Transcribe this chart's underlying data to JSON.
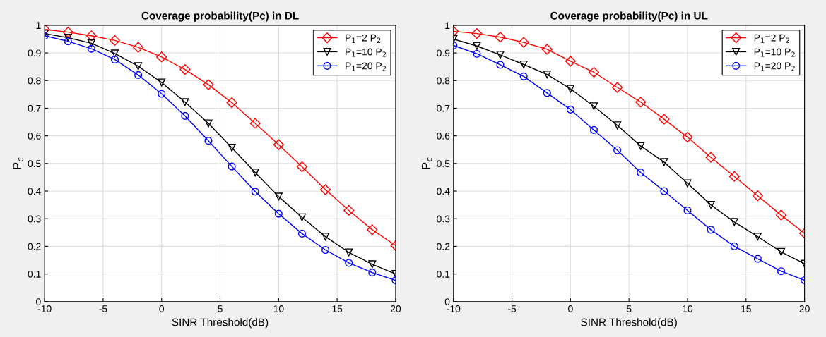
{
  "chart_data": [
    {
      "type": "line",
      "title": "Coverage probability(Pc) in DL",
      "xlabel": "SINR Threshold(dB)",
      "ylabel": "P$_{c}$",
      "x": [
        -10,
        -8,
        -6,
        -4,
        -2,
        0,
        2,
        4,
        6,
        8,
        10,
        12,
        14,
        16,
        18,
        20
      ],
      "xlim": [
        -10,
        20
      ],
      "xticks": [
        -10,
        -5,
        0,
        5,
        10,
        15,
        20
      ],
      "ylim": [
        0,
        1
      ],
      "yticks": [
        0,
        0.1,
        0.2,
        0.3,
        0.4,
        0.5,
        0.6,
        0.7,
        0.8,
        0.9,
        1
      ],
      "grid": true,
      "legend": "top right",
      "line_style": "solid",
      "series": [
        {
          "name": "P$_{1}$=2 P$_{2}$",
          "color": "#ff0000",
          "marker": "diamond",
          "values": [
            0.985,
            0.975,
            0.962,
            0.945,
            0.92,
            0.885,
            0.84,
            0.785,
            0.72,
            0.645,
            0.568,
            0.488,
            0.405,
            0.33,
            0.26,
            0.203
          ]
        },
        {
          "name": "P$_{1}$=10 P$_{2}$",
          "color": "#000000",
          "marker": "triangle",
          "values": [
            0.97,
            0.955,
            0.935,
            0.898,
            0.852,
            0.793,
            0.722,
            0.645,
            0.557,
            0.467,
            0.38,
            0.305,
            0.235,
            0.178,
            0.135,
            0.1
          ]
        },
        {
          "name": "P$_{1}$=20 P$_{2}$",
          "color": "#0000ff",
          "marker": "circle",
          "values": [
            0.962,
            0.942,
            0.915,
            0.876,
            0.82,
            0.752,
            0.672,
            0.582,
            0.489,
            0.398,
            0.318,
            0.246,
            0.187,
            0.14,
            0.105,
            0.077
          ]
        }
      ]
    },
    {
      "type": "line",
      "title": "Coverage probability(Pc) in UL",
      "xlabel": "SINR Threshold(dB)",
      "ylabel": "P$_{c}$",
      "x": [
        -10,
        -8,
        -6,
        -4,
        -2,
        0,
        2,
        4,
        6,
        8,
        10,
        12,
        14,
        16,
        18,
        20
      ],
      "xlim": [
        -10,
        20
      ],
      "xticks": [
        -10,
        -5,
        0,
        5,
        10,
        15,
        20
      ],
      "ylim": [
        0,
        1
      ],
      "yticks": [
        0,
        0.1,
        0.2,
        0.3,
        0.4,
        0.5,
        0.6,
        0.7,
        0.8,
        0.9,
        1
      ],
      "grid": true,
      "legend": "top right",
      "line_style": "solid",
      "series": [
        {
          "name": "P$_{1}$=2 P$_{2}$",
          "color": "#ff0000",
          "marker": "diamond",
          "values": [
            0.978,
            0.97,
            0.957,
            0.938,
            0.913,
            0.87,
            0.83,
            0.775,
            0.722,
            0.66,
            0.595,
            0.522,
            0.453,
            0.383,
            0.313,
            0.247
          ]
        },
        {
          "name": "P$_{1}$=10 P$_{2}$",
          "color": "#000000",
          "marker": "triangle",
          "values": [
            0.95,
            0.925,
            0.893,
            0.858,
            0.822,
            0.77,
            0.707,
            0.638,
            0.563,
            0.505,
            0.428,
            0.35,
            0.288,
            0.235,
            0.18,
            0.137
          ]
        },
        {
          "name": "P$_{1}$=20 P$_{2}$",
          "color": "#0000ff",
          "marker": "circle",
          "values": [
            0.927,
            0.897,
            0.857,
            0.815,
            0.755,
            0.695,
            0.621,
            0.548,
            0.467,
            0.4,
            0.33,
            0.26,
            0.2,
            0.155,
            0.11,
            0.077
          ]
        }
      ]
    }
  ]
}
